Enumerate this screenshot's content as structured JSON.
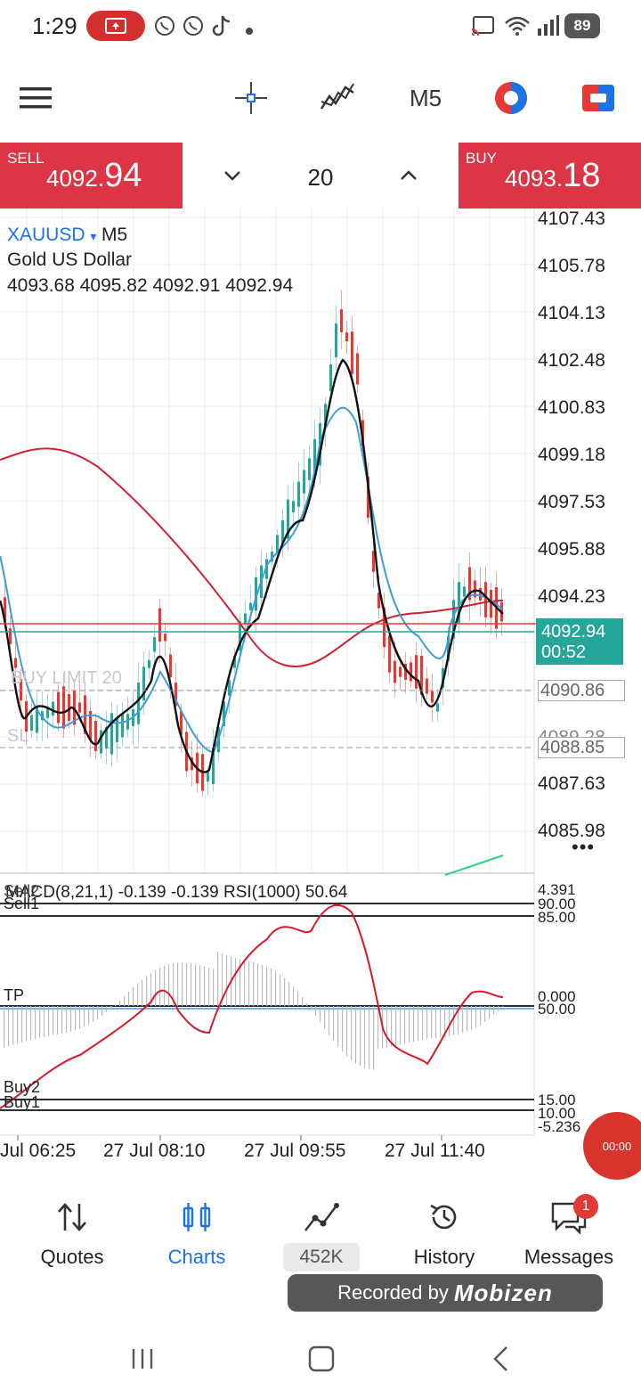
{
  "status_bar": {
    "time": "1:29",
    "battery": "89",
    "icons": [
      "screen-record-icon",
      "whatsapp-icon",
      "whatsapp-icon",
      "tiktok-icon",
      "dot-icon",
      "cast-icon",
      "wifi-icon",
      "signal-icon"
    ]
  },
  "toolbar": {
    "icons": [
      "menu-icon",
      "crosshair-icon",
      "indicators-icon",
      "period-selector",
      "color-scheme-icon",
      "trade-icon"
    ],
    "period": "M5"
  },
  "trade": {
    "sell_label": "SELL",
    "sell_price_main": "4092.",
    "sell_price_big": "94",
    "buy_label": "BUY",
    "buy_price_main": "4093.",
    "buy_price_big": "18",
    "volume": "20"
  },
  "chart": {
    "symbol": "XAUUSD",
    "symbol_arrow": "▾",
    "period": "M5",
    "description": "Gold US Dollar",
    "ohlc": "4093.68 4095.82 4092.91 4092.94",
    "price_labels": [
      "4107.43",
      "4105.78",
      "4104.13",
      "4102.48",
      "4100.83",
      "4099.18",
      "4097.53",
      "4095.88",
      "4094.23",
      "4087.63",
      "4085.98"
    ],
    "current_price": "4092.94",
    "countdown": "00:52",
    "buy_limit_label": "BUY LIMIT 20",
    "sl_label": "SL",
    "buy_limit_price": "4090.86",
    "sl_price": "4088.85",
    "hidden_price": "4089.28",
    "more": "•••"
  },
  "indicator": {
    "label": "MACD(8,21,1) -0.139 -0.139 RSI(1000) 50.64",
    "levels": [
      "Sell2",
      "Sell1",
      "TP",
      "Buy2",
      "Buy1"
    ],
    "axis_top": "4.391",
    "axis_90": "90.00",
    "axis_85": "85.00",
    "axis_zero": "0.000",
    "axis_50": "50.00",
    "axis_15": "15.00",
    "axis_10": "10.00",
    "axis_bottom": "-5.236"
  },
  "time_axis": [
    "Jul 06:25",
    "27 Jul 08:10",
    "27 Jul 09:55",
    "27 Jul 11:40"
  ],
  "badge_timer": "00:00",
  "nav": {
    "quotes": "Quotes",
    "charts": "Charts",
    "signals_count": "452K",
    "history": "History",
    "messages": "Messages",
    "messages_badge": "1"
  },
  "recorder": {
    "prefix": "Recorded by",
    "brand": "Mobizen"
  },
  "colors": {
    "sell_buy": "#dc3546",
    "accent": "#1a73e8",
    "bull": "#26a69a",
    "bear": "#e53935",
    "ma_black": "#111111",
    "ma_blue": "#3d9be0",
    "ma_red": "#cc2233"
  }
}
